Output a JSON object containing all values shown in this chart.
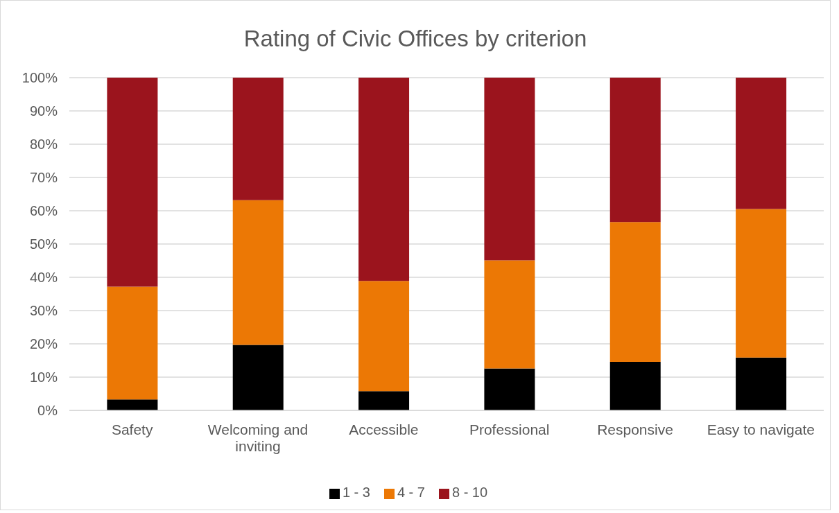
{
  "chart_data": {
    "type": "bar",
    "title": "Rating of Civic Offices by criterion",
    "categories": [
      "Safety",
      "Welcoming and inviting",
      "Accessible",
      "Professional",
      "Responsive",
      "Easy to navigate"
    ],
    "stacked": true,
    "series": [
      {
        "name": "1 - 3",
        "color": "#000000",
        "values": [
          3.3,
          19.7,
          5.8,
          12.6,
          14.6,
          15.9
        ]
      },
      {
        "name": "4 - 7",
        "color": "#ec7805",
        "values": [
          33.9,
          43.5,
          33.1,
          32.5,
          42.0,
          44.6
        ]
      },
      {
        "name": "8 - 10",
        "color": "#9b141d",
        "values": [
          62.8,
          36.8,
          61.1,
          54.9,
          43.4,
          39.5
        ]
      }
    ],
    "ylim": [
      0,
      100
    ],
    "yticks": [
      {
        "value": 0,
        "label": "0%"
      },
      {
        "value": 10,
        "label": "10%"
      },
      {
        "value": 20,
        "label": "20%"
      },
      {
        "value": 30,
        "label": "30%"
      },
      {
        "value": 40,
        "label": "40%"
      },
      {
        "value": 50,
        "label": "50%"
      },
      {
        "value": 60,
        "label": "60%"
      },
      {
        "value": 70,
        "label": "70%"
      },
      {
        "value": 80,
        "label": "80%"
      },
      {
        "value": 90,
        "label": "90%"
      },
      {
        "value": 100,
        "label": "100%"
      }
    ],
    "grid": "y",
    "legend": "bottom"
  }
}
